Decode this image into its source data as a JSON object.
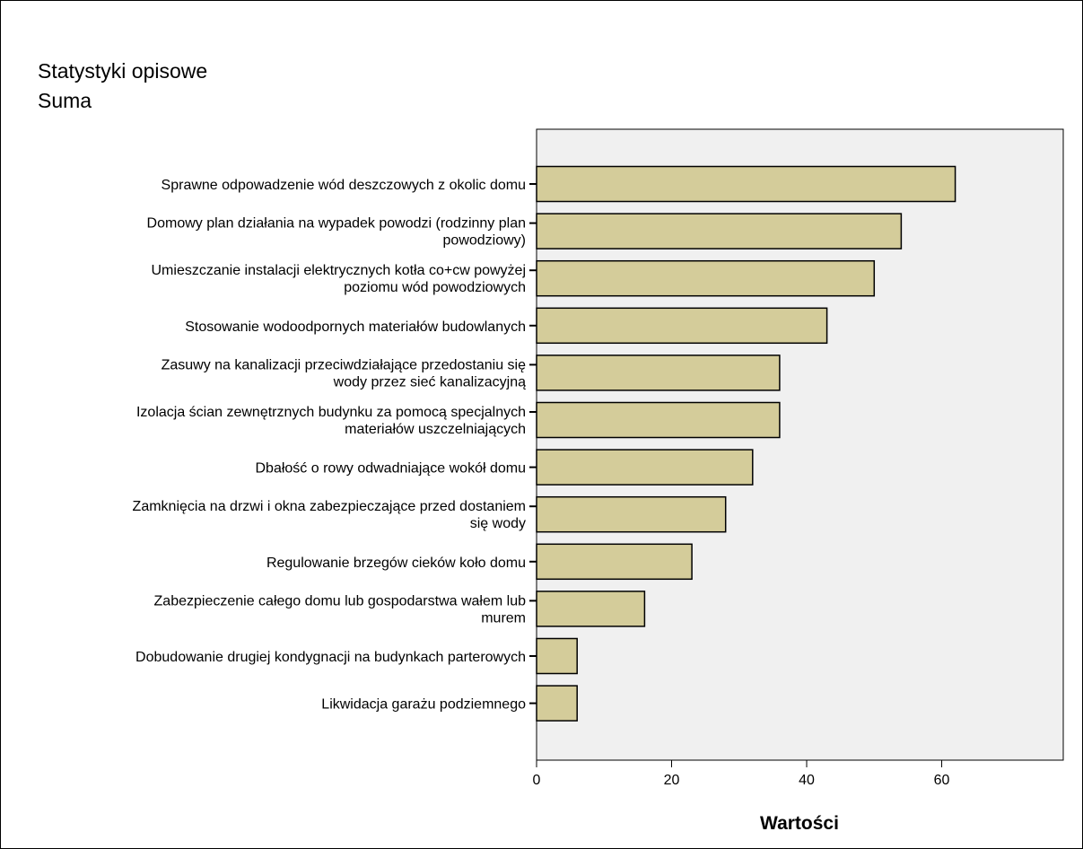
{
  "chart_data": {
    "type": "bar",
    "orientation": "horizontal",
    "title": "Statystyki opisowe",
    "subtitle": "Suma",
    "xlabel": "Wartości",
    "ylabel": "",
    "xlim": [
      0,
      78
    ],
    "ticks": [
      "0",
      "20",
      "40",
      "60"
    ],
    "tick_values": [
      0,
      20,
      40,
      60
    ],
    "grid": false,
    "legend": "none",
    "colors": {
      "bar_fill": "#d4cc9a",
      "bar_stroke": "#000000",
      "plot_background": "#f0f0f0"
    },
    "categories": [
      [
        "Sprawne odpowadzenie wód deszczowych z okolic domu"
      ],
      [
        "Domowy plan działania na wypadek powodzi (rodzinny plan",
        "powodziowy)"
      ],
      [
        "Umieszczanie instalacji elektrycznych kotła co+cw powyżej",
        "poziomu wód powodziowych"
      ],
      [
        "Stosowanie wodoodpornych materiałów budowlanych"
      ],
      [
        "Zasuwy na kanalizacji przeciwdziałające przedostaniu się",
        "wody przez sieć kanalizacyjną"
      ],
      [
        "Izolacja ścian zewnętrznych budynku za pomocą specjalnych",
        "materiałów uszczelniających"
      ],
      [
        "Dbałość o rowy odwadniające wokół domu"
      ],
      [
        "Zamknięcia na drzwi i okna zabezpieczające przed dostaniem",
        "się wody"
      ],
      [
        "Regulowanie brzegów cieków koło domu"
      ],
      [
        "Zabezpieczenie całego domu lub gospodarstwa wałem lub",
        "murem"
      ],
      [
        "Dobudowanie drugiej kondygnacji na budynkach parterowych"
      ],
      [
        "Likwidacja garażu podziemnego"
      ]
    ],
    "values": [
      62,
      54,
      50,
      43,
      36,
      36,
      32,
      28,
      23,
      16,
      6,
      6
    ]
  }
}
